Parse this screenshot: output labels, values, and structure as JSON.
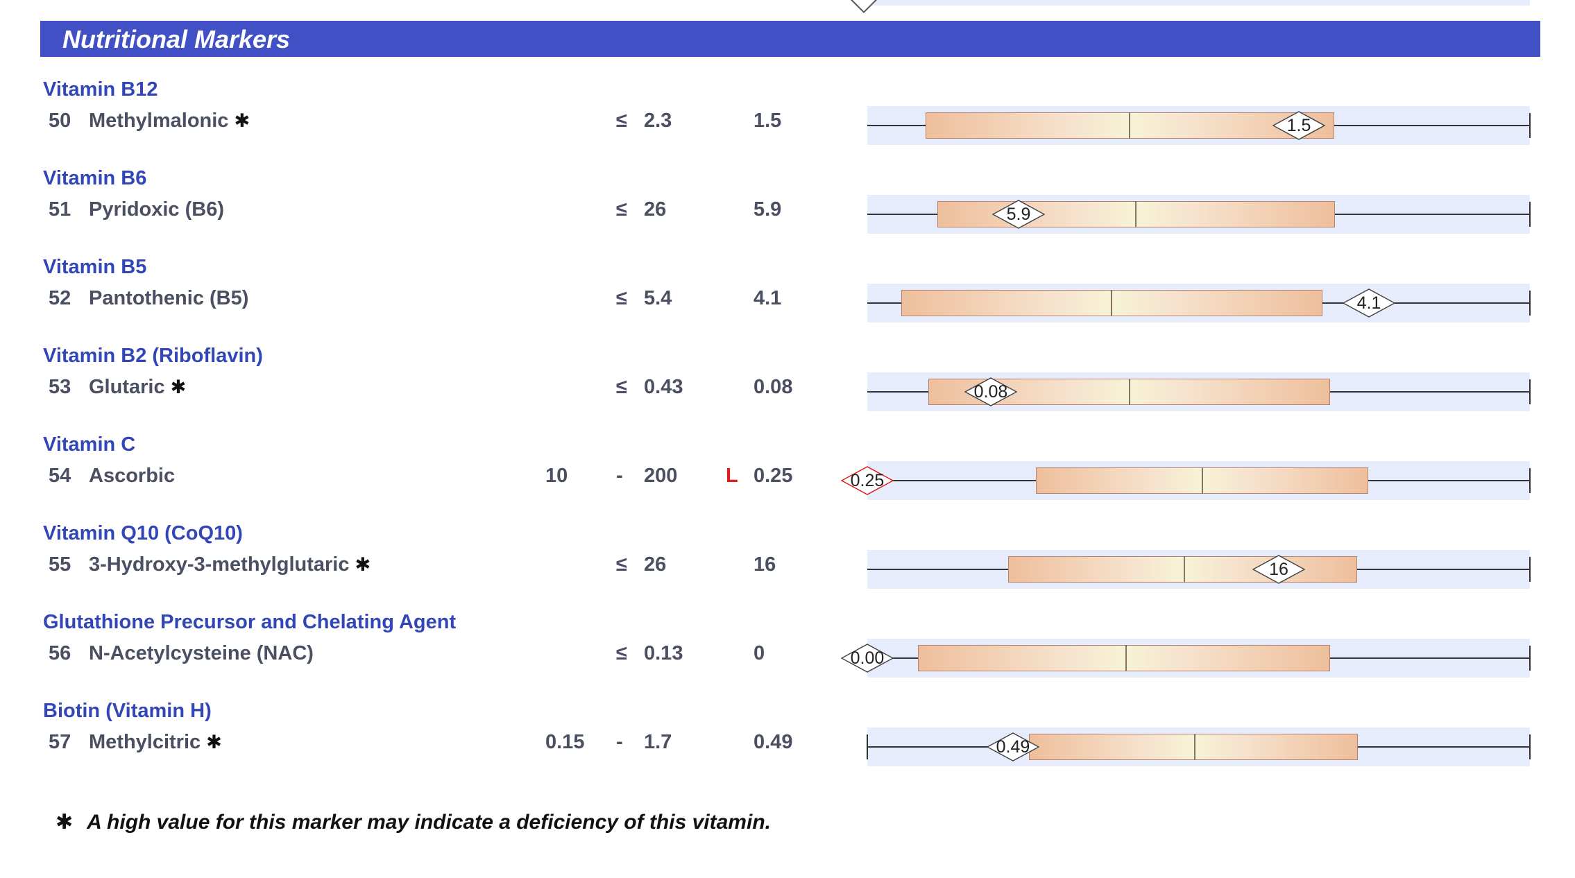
{
  "section": {
    "title": "Nutritional Markers"
  },
  "markers": [
    {
      "category": "Vitamin B12",
      "num": "50",
      "name": "Methylmalonic",
      "star": "✱",
      "low": "",
      "sep": "≤",
      "high": "2.3",
      "flag": "",
      "result": "1.5",
      "diamond": "1.5",
      "out_of_range": false
    },
    {
      "category": "Vitamin B6",
      "num": "51",
      "name": "Pyridoxic (B6)",
      "star": "",
      "low": "",
      "sep": "≤",
      "high": "26",
      "flag": "",
      "result": "5.9",
      "diamond": "5.9",
      "out_of_range": false
    },
    {
      "category": "Vitamin B5",
      "num": "52",
      "name": "Pantothenic (B5)",
      "star": "",
      "low": "",
      "sep": "≤",
      "high": "5.4",
      "flag": "",
      "result": "4.1",
      "diamond": "4.1",
      "out_of_range": false
    },
    {
      "category": "Vitamin B2 (Riboflavin)",
      "num": "53",
      "name": "Glutaric",
      "star": "✱",
      "low": "",
      "sep": "≤",
      "high": "0.43",
      "flag": "",
      "result": "0.08",
      "diamond": "0.08",
      "out_of_range": false
    },
    {
      "category": "Vitamin C",
      "num": "54",
      "name": "Ascorbic",
      "star": "",
      "low": "10",
      "sep": "-",
      "high": "200",
      "flag": "L",
      "result": "0.25",
      "diamond": "0.25",
      "out_of_range": true
    },
    {
      "category": "Vitamin Q10 (CoQ10)",
      "num": "55",
      "name": "3-Hydroxy-3-methylglutaric",
      "star": "✱",
      "low": "",
      "sep": "≤",
      "high": "26",
      "flag": "",
      "result": "16",
      "diamond": "16",
      "out_of_range": false
    },
    {
      "category": "Glutathione Precursor and Chelating Agent",
      "num": "56",
      "name": "N-Acetylcysteine (NAC)",
      "star": "",
      "low": "",
      "sep": "≤",
      "high": "0.13",
      "flag": "",
      "result": "0",
      "diamond": "0.00",
      "out_of_range": false
    },
    {
      "category": "Biotin (Vitamin H)",
      "num": "57",
      "name": "Methylcitric",
      "star": "✱",
      "low": "0.15",
      "sep": "-",
      "high": "1.7",
      "flag": "",
      "result": "0.49",
      "diamond": "0.49",
      "out_of_range": false
    }
  ],
  "footnote": {
    "star": "✱",
    "text": "A high value for this marker may indicate a deficiency of this vitamin."
  },
  "colors": {
    "header": "#4150c5",
    "category": "#3346b8",
    "flag": "#e01b1b",
    "track": "#e6ecfb"
  }
}
